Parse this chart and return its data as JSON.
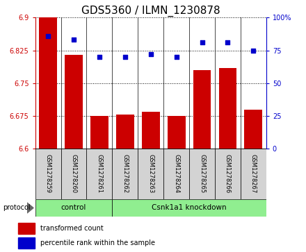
{
  "title": "GDS5360 / ILMN_1230878",
  "samples": [
    "GSM1278259",
    "GSM1278260",
    "GSM1278261",
    "GSM1278262",
    "GSM1278263",
    "GSM1278264",
    "GSM1278265",
    "GSM1278266",
    "GSM1278267"
  ],
  "transformed_count": [
    6.9,
    6.815,
    6.675,
    6.678,
    6.685,
    6.675,
    6.78,
    6.785,
    6.69
  ],
  "percentile_rank": [
    86,
    83,
    70,
    70,
    72,
    70,
    81,
    81,
    75
  ],
  "ylim_left": [
    6.6,
    6.9
  ],
  "ylim_right": [
    0,
    100
  ],
  "yticks_left": [
    6.6,
    6.675,
    6.75,
    6.825,
    6.9
  ],
  "yticks_right": [
    0,
    25,
    50,
    75,
    100
  ],
  "ytick_labels_right": [
    "0",
    "25",
    "50",
    "75",
    "100%"
  ],
  "bar_color": "#cc0000",
  "dot_color": "#0000cc",
  "control_group": [
    0,
    1,
    2
  ],
  "knockdown_group": [
    3,
    4,
    5,
    6,
    7,
    8
  ],
  "control_label": "control",
  "knockdown_label": "Csnk1a1 knockdown",
  "protocol_label": "protocol",
  "legend_bar_label": "transformed count",
  "legend_dot_label": "percentile rank within the sample",
  "group_bg_color": "#90ee90",
  "tick_area_bg": "#d3d3d3",
  "bar_width": 0.7,
  "title_fontsize": 11,
  "tick_fontsize": 7,
  "sample_fontsize": 6
}
